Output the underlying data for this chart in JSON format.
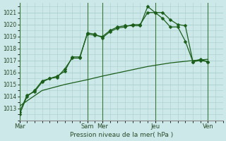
{
  "background_color": "#cce8e8",
  "grid_color": "#aacece",
  "line_color": "#1a5e1a",
  "ylabel": "Pression niveau de la mer( hPa )",
  "ylim": [
    1012.2,
    1021.8
  ],
  "yticks": [
    1013,
    1014,
    1015,
    1016,
    1017,
    1018,
    1019,
    1020,
    1021
  ],
  "xtick_labels": [
    "Mar",
    "Sam",
    "Mer",
    "Jeu",
    "Ven"
  ],
  "xtick_positions": [
    0,
    9,
    11,
    18,
    25
  ],
  "vline_positions": [
    0,
    9,
    11,
    18,
    25
  ],
  "xlim": [
    0,
    27
  ],
  "series1_x": [
    0,
    1,
    2,
    3,
    4,
    5,
    6,
    7,
    8,
    9,
    10,
    11,
    12,
    13,
    14,
    15,
    16,
    17,
    18,
    19,
    20,
    21,
    22,
    23,
    24,
    25
  ],
  "series1_y": [
    1012.7,
    1014.1,
    1014.4,
    1015.2,
    1015.5,
    1015.6,
    1016.3,
    1017.2,
    1017.2,
    1019.3,
    1019.2,
    1018.9,
    1019.4,
    1019.7,
    1019.8,
    1020.0,
    1020.0,
    1021.0,
    1021.0,
    1020.5,
    1019.8,
    1019.8,
    1018.6,
    1016.9,
    1017.0,
    1016.9
  ],
  "series2_x": [
    0,
    1,
    2,
    3,
    4,
    5,
    6,
    7,
    8,
    9,
    10,
    11,
    12,
    13,
    14,
    15,
    16,
    17,
    18,
    19,
    20,
    21,
    22,
    23,
    24,
    25
  ],
  "series2_y": [
    1012.5,
    1014.0,
    1014.5,
    1015.3,
    1015.5,
    1015.7,
    1016.1,
    1017.3,
    1017.3,
    1019.2,
    1019.1,
    1019.0,
    1019.5,
    1019.8,
    1019.9,
    1019.9,
    1019.9,
    1021.5,
    1021.0,
    1021.0,
    1020.4,
    1020.0,
    1019.9,
    1016.9,
    1017.1,
    1016.9
  ],
  "series3_x": [
    0,
    3,
    6,
    9,
    11,
    14,
    17,
    20,
    23,
    25
  ],
  "series3_y": [
    1013.2,
    1014.5,
    1015.0,
    1015.4,
    1015.7,
    1016.1,
    1016.5,
    1016.8,
    1017.0,
    1017.1
  ]
}
